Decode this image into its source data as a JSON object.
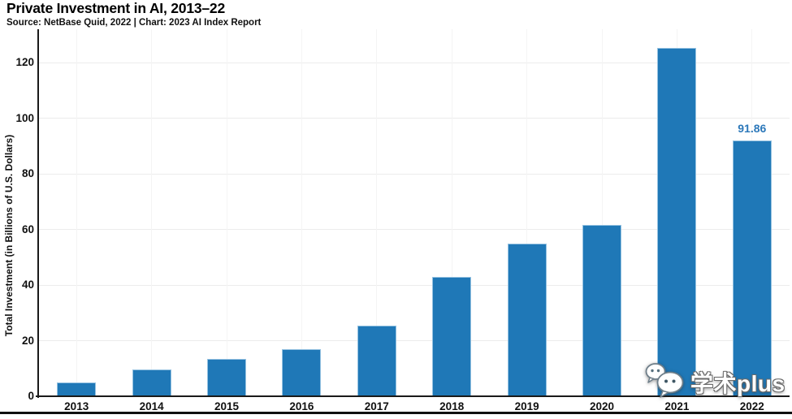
{
  "header": {
    "title": "Private Investment in AI, 2013–22",
    "source": "Source: NetBase Quid, 2022 | Chart: 2023 AI Index Report"
  },
  "chart_data": {
    "type": "bar",
    "title": "Private Investment in AI, 2013–22",
    "subtitle": "Source: NetBase Quid, 2022 | Chart: 2023 AI Index Report",
    "categories": [
      "2013",
      "2014",
      "2015",
      "2016",
      "2017",
      "2018",
      "2019",
      "2020",
      "2021",
      "2022"
    ],
    "values": [
      5.0,
      9.7,
      13.3,
      17.0,
      25.5,
      43.0,
      55.0,
      61.5,
      125.4,
      91.86
    ],
    "xlabel": "",
    "ylabel": "Total Investment (in Billions of U.S. Dollars)",
    "ylim": [
      0,
      132
    ],
    "yticks": [
      0,
      20,
      40,
      60,
      80,
      100,
      120
    ],
    "grid": true,
    "legend": "none",
    "bar_color": "#1f78b7",
    "annotation_color": "#2c78ba",
    "annotations": [
      {
        "category": "2022",
        "text": "91.86"
      }
    ]
  },
  "watermark": {
    "icon": "wechat-icon",
    "text": "学术plus"
  }
}
